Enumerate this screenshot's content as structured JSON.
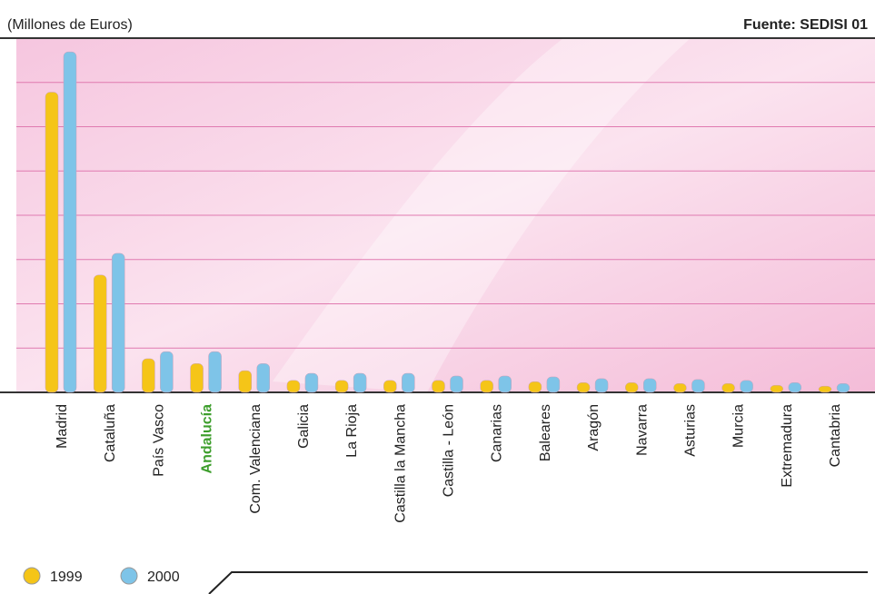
{
  "chart_data": {
    "type": "bar",
    "subtitle": "(Millones de Euros)",
    "source": "Fuente: SEDISI 01",
    "categories": [
      "Madrid",
      "Cataluña",
      "País Vasco",
      "Andalucía",
      "Com. Valenciana",
      "Galicia",
      "La Rioja",
      "Castilla la Mancha",
      "Castilla - León",
      "Canarias",
      "Baleares",
      "Aragón",
      "Navarra",
      "Asturias",
      "Murcia",
      "Extremadura",
      "Cantabria"
    ],
    "series": [
      {
        "name": "1999",
        "color": "#f5c518",
        "values": [
          6.78,
          2.65,
          0.76,
          0.65,
          0.49,
          0.27,
          0.27,
          0.27,
          0.27,
          0.27,
          0.24,
          0.22,
          0.22,
          0.2,
          0.2,
          0.16,
          0.14
        ]
      },
      {
        "name": "2000",
        "color": "#7ec4e8",
        "values": [
          7.69,
          3.14,
          0.92,
          0.92,
          0.65,
          0.43,
          0.43,
          0.43,
          0.37,
          0.37,
          0.35,
          0.31,
          0.31,
          0.29,
          0.27,
          0.22,
          0.2
        ]
      }
    ],
    "highlight": {
      "index": 3,
      "color": "#3d9e2c"
    },
    "ylim": [
      0,
      8
    ],
    "yticks": [
      0,
      1,
      2,
      3,
      4,
      5,
      6,
      7,
      8
    ],
    "grid": true,
    "grid_color": "#e07ab0",
    "legend": "bottom-left"
  }
}
